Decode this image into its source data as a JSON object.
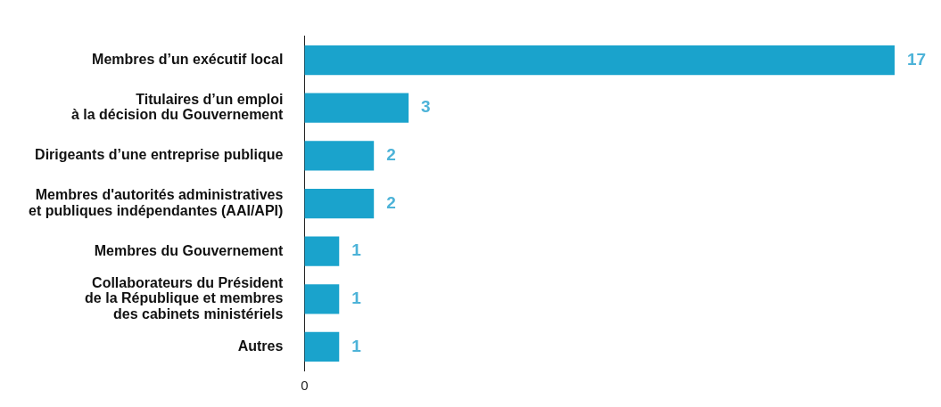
{
  "chart_data": {
    "type": "bar",
    "orientation": "horizontal",
    "categories": [
      "Membres d’un exécutif local",
      "Titulaires d’un emploi\nà la décision du Gouvernement",
      "Dirigeants d’une entreprise publique",
      "Membres d'autorités administratives\net publiques indépendantes (AAI/API)",
      "Membres du Gouvernement",
      "Collaborateurs du Président\nde la République et membres\ndes cabinets ministériels",
      "Autres"
    ],
    "values": [
      17,
      3,
      2,
      2,
      1,
      1,
      1
    ],
    "color": "#1aa3cc",
    "annotations": [
      "0"
    ],
    "data_labels": true
  }
}
